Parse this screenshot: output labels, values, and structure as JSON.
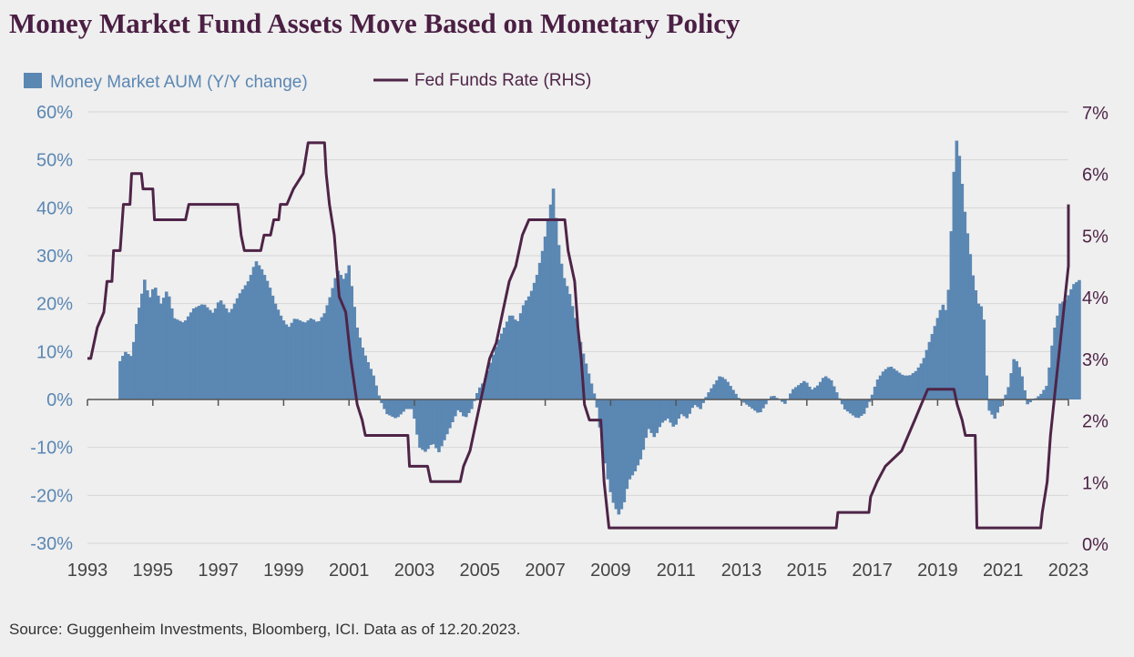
{
  "title": "Money Market Fund Assets Move Based on Monetary Policy",
  "source": "Source: Guggenheim Investments, Bloomberg, ICI. Data as of 12.20.2023.",
  "colors": {
    "bars": "#5b87b3",
    "line": "#4e2447",
    "left_axis_text": "#5b87b3",
    "right_axis_text": "#4e2447",
    "title": "#4b1f44"
  },
  "chart_data": {
    "type": "bar+line",
    "left_axis": {
      "min": -30,
      "max": 60,
      "ticks": [
        "60%",
        "50%",
        "40%",
        "30%",
        "20%",
        "10%",
        "0%",
        "-10%",
        "-20%",
        "-30%"
      ],
      "tick_values": [
        60,
        50,
        40,
        30,
        20,
        10,
        0,
        -10,
        -20,
        -30
      ]
    },
    "right_axis": {
      "min": 0,
      "max": 7,
      "ticks": [
        "7%",
        "6%",
        "5%",
        "4%",
        "3%",
        "2%",
        "1%",
        "0%"
      ],
      "tick_values": [
        7,
        6,
        5,
        4,
        3,
        2,
        1,
        0
      ]
    },
    "x_axis": {
      "min": 1993,
      "max": 2023,
      "ticks": [
        "1993",
        "1995",
        "1997",
        "1999",
        "2001",
        "2003",
        "2005",
        "2007",
        "2009",
        "2011",
        "2013",
        "2015",
        "2017",
        "2019",
        "2021",
        "2023"
      ]
    },
    "legend": [
      {
        "label": "Money Market AUM (Y/Y change)",
        "type": "bar"
      },
      {
        "label": "Fed Funds Rate (RHS)",
        "type": "line"
      }
    ],
    "series": [
      {
        "name": "Money Market AUM (Y/Y change)",
        "axis": "left",
        "type": "bar",
        "points": [
          [
            1993.95,
            8
          ],
          [
            1994.1,
            10
          ],
          [
            1994.3,
            9
          ],
          [
            1994.5,
            18
          ],
          [
            1994.7,
            25
          ],
          [
            1994.85,
            21
          ],
          [
            1995.0,
            24
          ],
          [
            1995.2,
            20
          ],
          [
            1995.4,
            23
          ],
          [
            1995.6,
            17
          ],
          [
            1995.9,
            16
          ],
          [
            1996.2,
            19
          ],
          [
            1996.5,
            20
          ],
          [
            1996.8,
            18
          ],
          [
            1997.0,
            21
          ],
          [
            1997.3,
            18
          ],
          [
            1997.6,
            22
          ],
          [
            1997.9,
            25
          ],
          [
            1998.1,
            29
          ],
          [
            1998.3,
            27
          ],
          [
            1998.5,
            24
          ],
          [
            1998.7,
            20
          ],
          [
            1998.9,
            17
          ],
          [
            1999.1,
            15
          ],
          [
            1999.3,
            17
          ],
          [
            1999.6,
            16
          ],
          [
            1999.8,
            17
          ],
          [
            2000.0,
            16
          ],
          [
            2000.2,
            18
          ],
          [
            2000.4,
            22
          ],
          [
            2000.6,
            27
          ],
          [
            2000.8,
            25
          ],
          [
            2000.95,
            28
          ],
          [
            2001.2,
            15
          ],
          [
            2001.4,
            10
          ],
          [
            2001.7,
            5
          ],
          [
            2001.9,
            0
          ],
          [
            2002.1,
            -3
          ],
          [
            2002.4,
            -4
          ],
          [
            2002.7,
            -2
          ],
          [
            2002.9,
            -2
          ],
          [
            2003.1,
            -10
          ],
          [
            2003.3,
            -11
          ],
          [
            2003.5,
            -9
          ],
          [
            2003.7,
            -11
          ],
          [
            2003.9,
            -8
          ],
          [
            2004.1,
            -5
          ],
          [
            2004.3,
            -2
          ],
          [
            2004.5,
            -4
          ],
          [
            2004.7,
            -2
          ],
          [
            2004.9,
            2
          ],
          [
            2005.1,
            4
          ],
          [
            2005.3,
            8
          ],
          [
            2005.5,
            12
          ],
          [
            2005.7,
            15
          ],
          [
            2005.9,
            18
          ],
          [
            2006.1,
            16
          ],
          [
            2006.3,
            20
          ],
          [
            2006.5,
            22
          ],
          [
            2006.7,
            26
          ],
          [
            2006.9,
            32
          ],
          [
            2007.05,
            38
          ],
          [
            2007.2,
            44
          ],
          [
            2007.35,
            33
          ],
          [
            2007.5,
            26
          ],
          [
            2007.7,
            22
          ],
          [
            2007.9,
            16
          ],
          [
            2008.1,
            10
          ],
          [
            2008.3,
            5
          ],
          [
            2008.5,
            0
          ],
          [
            2008.7,
            -10
          ],
          [
            2008.9,
            -18
          ],
          [
            2009.05,
            -22
          ],
          [
            2009.2,
            -24
          ],
          [
            2009.35,
            -22
          ],
          [
            2009.5,
            -17
          ],
          [
            2009.7,
            -15
          ],
          [
            2009.9,
            -12
          ],
          [
            2010.1,
            -6
          ],
          [
            2010.3,
            -8
          ],
          [
            2010.5,
            -5
          ],
          [
            2010.7,
            -4
          ],
          [
            2010.9,
            -6
          ],
          [
            2011.1,
            -3
          ],
          [
            2011.3,
            -4
          ],
          [
            2011.5,
            -1
          ],
          [
            2011.7,
            -2
          ],
          [
            2011.9,
            1
          ],
          [
            2012.1,
            3
          ],
          [
            2012.3,
            5
          ],
          [
            2012.5,
            4
          ],
          [
            2012.7,
            2
          ],
          [
            2012.9,
            0
          ],
          [
            2013.1,
            -1
          ],
          [
            2013.3,
            -2
          ],
          [
            2013.5,
            -3
          ],
          [
            2013.7,
            -1
          ],
          [
            2013.9,
            1
          ],
          [
            2014.1,
            0
          ],
          [
            2014.3,
            -1
          ],
          [
            2014.5,
            2
          ],
          [
            2014.7,
            3
          ],
          [
            2014.9,
            4
          ],
          [
            2015.1,
            2
          ],
          [
            2015.3,
            3
          ],
          [
            2015.5,
            5
          ],
          [
            2015.7,
            4
          ],
          [
            2015.9,
            1
          ],
          [
            2016.1,
            -2
          ],
          [
            2016.3,
            -3
          ],
          [
            2016.5,
            -4
          ],
          [
            2016.7,
            -3
          ],
          [
            2016.9,
            0
          ],
          [
            2017.1,
            4
          ],
          [
            2017.3,
            6
          ],
          [
            2017.5,
            7
          ],
          [
            2017.7,
            6
          ],
          [
            2017.9,
            5
          ],
          [
            2018.1,
            5
          ],
          [
            2018.3,
            6
          ],
          [
            2018.5,
            8
          ],
          [
            2018.7,
            12
          ],
          [
            2018.9,
            16
          ],
          [
            2019.1,
            20
          ],
          [
            2019.25,
            18
          ],
          [
            2019.4,
            40
          ],
          [
            2019.5,
            55
          ],
          [
            2019.6,
            52
          ],
          [
            2019.7,
            45
          ],
          [
            2019.8,
            38
          ],
          [
            2019.9,
            33
          ],
          [
            2020.05,
            25
          ],
          [
            2020.2,
            20
          ],
          [
            2020.35,
            19
          ],
          [
            2020.5,
            -2
          ],
          [
            2020.7,
            -4
          ],
          [
            2020.9,
            -1
          ],
          [
            2021.1,
            2
          ],
          [
            2021.3,
            9
          ],
          [
            2021.5,
            6
          ],
          [
            2021.7,
            -1
          ],
          [
            2021.9,
            0
          ],
          [
            2022.1,
            1
          ],
          [
            2022.3,
            3
          ],
          [
            2022.5,
            14
          ],
          [
            2022.7,
            20
          ],
          [
            2022.9,
            21
          ],
          [
            2023.1,
            24
          ],
          [
            2023.3,
            25
          ]
        ]
      },
      {
        "name": "Fed Funds Rate (RHS)",
        "axis": "right",
        "type": "line",
        "points": [
          [
            1993.0,
            3.0
          ],
          [
            1993.1,
            3.0
          ],
          [
            1993.3,
            3.5
          ],
          [
            1993.5,
            3.75
          ],
          [
            1993.6,
            4.25
          ],
          [
            1993.75,
            4.25
          ],
          [
            1993.8,
            4.75
          ],
          [
            1994.0,
            4.75
          ],
          [
            1994.1,
            5.5
          ],
          [
            1994.3,
            5.5
          ],
          [
            1994.35,
            6.0
          ],
          [
            1994.65,
            6.0
          ],
          [
            1994.7,
            5.75
          ],
          [
            1995.0,
            5.75
          ],
          [
            1995.05,
            5.25
          ],
          [
            1996.0,
            5.25
          ],
          [
            1996.1,
            5.5
          ],
          [
            1997.6,
            5.5
          ],
          [
            1997.7,
            5.0
          ],
          [
            1997.8,
            4.75
          ],
          [
            1998.3,
            4.75
          ],
          [
            1998.4,
            5.0
          ],
          [
            1998.6,
            5.0
          ],
          [
            1998.7,
            5.25
          ],
          [
            1998.85,
            5.25
          ],
          [
            1998.9,
            5.5
          ],
          [
            1999.1,
            5.5
          ],
          [
            1999.3,
            5.75
          ],
          [
            1999.6,
            6.0
          ],
          [
            1999.75,
            6.5
          ],
          [
            2000.25,
            6.5
          ],
          [
            2000.3,
            6.0
          ],
          [
            2000.4,
            5.5
          ],
          [
            2000.55,
            5.0
          ],
          [
            2000.7,
            4.0
          ],
          [
            2000.9,
            3.75
          ],
          [
            2001.05,
            3.0
          ],
          [
            2001.25,
            2.25
          ],
          [
            2001.4,
            2.0
          ],
          [
            2001.5,
            1.75
          ],
          [
            2002.8,
            1.75
          ],
          [
            2002.85,
            1.25
          ],
          [
            2003.4,
            1.25
          ],
          [
            2003.5,
            1.0
          ],
          [
            2004.4,
            1.0
          ],
          [
            2004.5,
            1.25
          ],
          [
            2004.7,
            1.5
          ],
          [
            2004.9,
            2.0
          ],
          [
            2005.1,
            2.5
          ],
          [
            2005.3,
            3.0
          ],
          [
            2005.5,
            3.25
          ],
          [
            2005.7,
            3.75
          ],
          [
            2005.9,
            4.25
          ],
          [
            2006.1,
            4.5
          ],
          [
            2006.3,
            5.0
          ],
          [
            2006.5,
            5.25
          ],
          [
            2007.6,
            5.25
          ],
          [
            2007.7,
            4.75
          ],
          [
            2007.8,
            4.5
          ],
          [
            2007.9,
            4.25
          ],
          [
            2008.0,
            3.5
          ],
          [
            2008.1,
            3.0
          ],
          [
            2008.2,
            2.25
          ],
          [
            2008.35,
            2.0
          ],
          [
            2008.7,
            2.0
          ],
          [
            2008.8,
            1.0
          ],
          [
            2008.95,
            0.25
          ],
          [
            2015.9,
            0.25
          ],
          [
            2015.95,
            0.5
          ],
          [
            2016.9,
            0.5
          ],
          [
            2016.95,
            0.75
          ],
          [
            2017.15,
            1.0
          ],
          [
            2017.4,
            1.25
          ],
          [
            2017.9,
            1.5
          ],
          [
            2018.1,
            1.75
          ],
          [
            2018.3,
            2.0
          ],
          [
            2018.5,
            2.25
          ],
          [
            2018.7,
            2.5
          ],
          [
            2019.5,
            2.5
          ],
          [
            2019.6,
            2.25
          ],
          [
            2019.75,
            2.0
          ],
          [
            2019.85,
            1.75
          ],
          [
            2020.15,
            1.75
          ],
          [
            2020.2,
            0.25
          ],
          [
            2022.15,
            0.25
          ],
          [
            2022.2,
            0.5
          ],
          [
            2022.35,
            1.0
          ],
          [
            2022.45,
            1.75
          ],
          [
            2022.6,
            2.5
          ],
          [
            2022.75,
            3.25
          ],
          [
            2022.9,
            4.0
          ],
          [
            2023.0,
            4.5
          ],
          [
            2023.1,
            4.75
          ],
          [
            2023.25,
            5.0
          ],
          [
            2023.35,
            5.25
          ],
          [
            2023.55,
            5.5
          ],
          [
            2024.0,
            5.5
          ]
        ]
      }
    ]
  }
}
